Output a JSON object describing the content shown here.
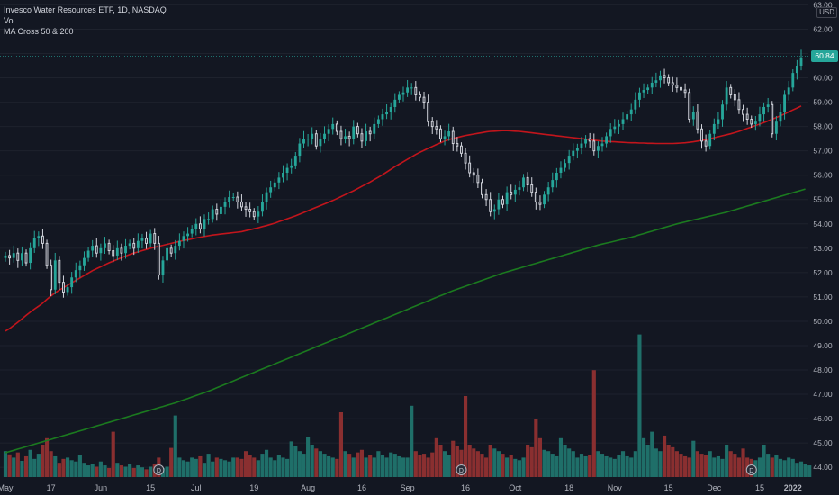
{
  "legend": {
    "title": "Invesco Water Resources ETF, 1D, NASDAQ",
    "vol": "Vol",
    "ma": "MA Cross 50 & 200"
  },
  "currency": "USD",
  "last_price": "60.84",
  "colors": {
    "background": "#131722",
    "up": "#26a69a",
    "down": "#ef5350",
    "vol_up": "#1f6f69",
    "vol_down": "#8a2f30",
    "ma50": "#c2151c",
    "ma200": "#1b7a1f",
    "grid": "#1e222d",
    "axis_text": "#b2b5be"
  },
  "chart_data": {
    "type": "candlestick",
    "y_ticks": [
      "63.00",
      "62.00",
      "61.00",
      "60.00",
      "59.00",
      "58.00",
      "57.00",
      "56.00",
      "55.00",
      "54.00",
      "53.00",
      "52.00",
      "51.00",
      "50.00",
      "49.00",
      "48.00",
      "47.00",
      "46.00",
      "45.00",
      "44.00"
    ],
    "y_range": [
      43.6,
      63.2
    ],
    "x_ticks": [
      "May",
      "17",
      "Jun",
      "15",
      "Jul",
      "19",
      "Aug",
      "16",
      "Sep",
      "16",
      "Oct",
      "18",
      "Nov",
      "15",
      "Dec",
      "15",
      "2022"
    ],
    "x_tick_index": [
      0,
      11,
      23,
      35,
      46,
      60,
      73,
      86,
      97,
      111,
      123,
      136,
      147,
      160,
      171,
      182,
      190
    ],
    "dividend_markers": {
      "label": "D",
      "index": [
        37,
        110,
        180
      ]
    },
    "close": [
      52.7,
      52.6,
      52.8,
      52.5,
      52.8,
      52.4,
      53.0,
      53.4,
      53.5,
      53.2,
      52.3,
      51.3,
      52.5,
      51.6,
      51.2,
      51.4,
      51.8,
      52.1,
      52.3,
      52.6,
      52.9,
      53.1,
      52.8,
      53.0,
      53.2,
      52.9,
      52.7,
      53.0,
      52.8,
      53.1,
      53.2,
      53.0,
      53.3,
      53.4,
      53.2,
      53.6,
      53.2,
      51.9,
      52.5,
      53.0,
      52.8,
      53.1,
      53.3,
      53.5,
      53.6,
      53.8,
      54.0,
      53.8,
      54.2,
      54.2,
      54.6,
      54.4,
      54.7,
      54.9,
      55.1,
      55.1,
      54.9,
      54.7,
      54.6,
      54.5,
      54.3,
      54.5,
      54.9,
      55.3,
      55.5,
      55.7,
      55.9,
      56.1,
      56.3,
      56.4,
      56.8,
      57.3,
      57.5,
      57.5,
      57.7,
      57.2,
      57.5,
      57.7,
      57.9,
      58.1,
      57.8,
      57.5,
      57.6,
      57.5,
      58.0,
      57.7,
      57.4,
      57.8,
      57.7,
      58.1,
      58.3,
      58.5,
      58.6,
      58.8,
      59.1,
      59.3,
      59.4,
      59.6,
      59.6,
      59.3,
      59.2,
      59.0,
      58.2,
      58.0,
      57.9,
      57.5,
      57.6,
      57.8,
      57.3,
      57.2,
      56.9,
      56.5,
      56.1,
      56.0,
      55.7,
      55.2,
      55.0,
      54.5,
      54.6,
      55.0,
      54.8,
      55.3,
      55.2,
      55.4,
      55.5,
      55.9,
      55.6,
      55.3,
      54.9,
      54.8,
      55.2,
      55.5,
      55.8,
      56.1,
      56.3,
      56.5,
      56.8,
      57.0,
      57.1,
      57.3,
      57.5,
      57.4,
      57.0,
      57.2,
      57.3,
      57.6,
      57.9,
      58.0,
      58.1,
      58.3,
      58.5,
      58.7,
      59.1,
      59.4,
      59.5,
      59.6,
      59.8,
      59.9,
      60.1,
      60.0,
      59.8,
      59.7,
      59.6,
      59.5,
      59.4,
      58.3,
      58.6,
      57.9,
      57.4,
      57.2,
      57.7,
      58.1,
      58.3,
      58.9,
      59.6,
      59.3,
      59.1,
      58.7,
      58.5,
      58.3,
      58.1,
      58.2,
      58.5,
      58.8,
      58.9,
      57.7,
      58.2,
      58.6,
      59.3,
      59.6,
      60.2,
      60.5,
      60.84
    ],
    "ma50": [
      49.6,
      49.7,
      49.83,
      49.96,
      50.1,
      50.24,
      50.38,
      50.5,
      50.62,
      50.75,
      50.9,
      51.04,
      51.17,
      51.28,
      51.38,
      51.48,
      51.58,
      51.68,
      51.78,
      51.88,
      51.98,
      52.08,
      52.16,
      52.24,
      52.32,
      52.4,
      52.47,
      52.54,
      52.61,
      52.68,
      52.74,
      52.8,
      52.85,
      52.9,
      52.95,
      53.0,
      53.04,
      53.08,
      53.12,
      53.16,
      53.2,
      53.24,
      53.28,
      53.32,
      53.35,
      53.38,
      53.42,
      53.45,
      53.48,
      53.51,
      53.54,
      53.56,
      53.58,
      53.6,
      53.62,
      53.64,
      53.66,
      53.68,
      53.72,
      53.76,
      53.8,
      53.84,
      53.89,
      53.93,
      53.98,
      54.03,
      54.09,
      54.15,
      54.21,
      54.27,
      54.33,
      54.4,
      54.47,
      54.54,
      54.61,
      54.68,
      54.75,
      54.82,
      54.89,
      54.96,
      55.04,
      55.12,
      55.2,
      55.28,
      55.36,
      55.45,
      55.54,
      55.63,
      55.72,
      55.82,
      55.92,
      56.02,
      56.13,
      56.24,
      56.35,
      56.45,
      56.55,
      56.65,
      56.75,
      56.85,
      56.94,
      57.02,
      57.1,
      57.18,
      57.26,
      57.33,
      57.4,
      57.46,
      57.51,
      57.55,
      57.59,
      57.63,
      57.66,
      57.69,
      57.72,
      57.75,
      57.78,
      57.8,
      57.81,
      57.82,
      57.83,
      57.83,
      57.82,
      57.81,
      57.8,
      57.78,
      57.76,
      57.74,
      57.72,
      57.7,
      57.68,
      57.66,
      57.64,
      57.62,
      57.6,
      57.58,
      57.56,
      57.54,
      57.52,
      57.5,
      57.48,
      57.46,
      57.44,
      57.42,
      57.4,
      57.39,
      57.38,
      57.37,
      57.36,
      57.35,
      57.34,
      57.33,
      57.33,
      57.32,
      57.32,
      57.31,
      57.31,
      57.3,
      57.3,
      57.3,
      57.3,
      57.3,
      57.31,
      57.32,
      57.33,
      57.35,
      57.37,
      57.4,
      57.43,
      57.46,
      57.5,
      57.54,
      57.58,
      57.62,
      57.66,
      57.7,
      57.75,
      57.8,
      57.86,
      57.92,
      57.98,
      58.04,
      58.1,
      58.16,
      58.23,
      58.3,
      58.37,
      58.44,
      58.52,
      58.6,
      58.68,
      58.76,
      58.84
    ],
    "ma200": [
      44.6,
      44.65,
      44.7,
      44.75,
      44.8,
      44.85,
      44.9,
      44.95,
      45.0,
      45.05,
      45.1,
      45.15,
      45.2,
      45.25,
      45.3,
      45.35,
      45.4,
      45.45,
      45.5,
      45.55,
      45.6,
      45.65,
      45.7,
      45.75,
      45.8,
      45.85,
      45.9,
      45.95,
      46.0,
      46.05,
      46.1,
      46.15,
      46.2,
      46.25,
      46.3,
      46.35,
      46.4,
      46.45,
      46.5,
      46.55,
      46.6,
      46.65,
      46.71,
      46.77,
      46.83,
      46.89,
      46.95,
      47.01,
      47.07,
      47.13,
      47.2,
      47.27,
      47.34,
      47.41,
      47.48,
      47.55,
      47.62,
      47.69,
      47.76,
      47.83,
      47.9,
      47.97,
      48.04,
      48.11,
      48.18,
      48.25,
      48.32,
      48.39,
      48.46,
      48.53,
      48.6,
      48.67,
      48.74,
      48.81,
      48.88,
      48.95,
      49.02,
      49.09,
      49.16,
      49.23,
      49.3,
      49.37,
      49.44,
      49.51,
      49.58,
      49.65,
      49.72,
      49.79,
      49.86,
      49.93,
      50.0,
      50.07,
      50.14,
      50.21,
      50.28,
      50.35,
      50.42,
      50.49,
      50.56,
      50.63,
      50.7,
      50.77,
      50.84,
      50.91,
      50.98,
      51.05,
      51.12,
      51.19,
      51.26,
      51.32,
      51.38,
      51.44,
      51.5,
      51.56,
      51.62,
      51.68,
      51.74,
      51.8,
      51.86,
      51.92,
      51.98,
      52.03,
      52.08,
      52.13,
      52.18,
      52.23,
      52.28,
      52.33,
      52.38,
      52.43,
      52.48,
      52.53,
      52.58,
      52.63,
      52.68,
      52.73,
      52.78,
      52.83,
      52.88,
      52.93,
      52.98,
      53.03,
      53.08,
      53.13,
      53.17,
      53.21,
      53.25,
      53.29,
      53.33,
      53.37,
      53.41,
      53.45,
      53.5,
      53.55,
      53.6,
      53.65,
      53.7,
      53.75,
      53.8,
      53.85,
      53.9,
      53.95,
      54.0,
      54.04,
      54.08,
      54.12,
      54.16,
      54.2,
      54.24,
      54.28,
      54.32,
      54.36,
      54.4,
      54.44,
      54.48,
      54.53,
      54.58,
      54.63,
      54.68,
      54.73,
      54.78,
      54.83,
      54.88,
      54.93,
      54.98,
      55.03,
      55.08,
      55.13,
      55.18,
      55.23,
      55.28,
      55.33,
      55.38,
      55.43
    ],
    "volume_relative": [
      0.4,
      0.35,
      0.3,
      0.38,
      0.25,
      0.32,
      0.42,
      0.28,
      0.36,
      0.5,
      0.6,
      0.4,
      0.32,
      0.22,
      0.28,
      0.3,
      0.26,
      0.24,
      0.34,
      0.22,
      0.18,
      0.2,
      0.16,
      0.24,
      0.18,
      0.14,
      0.7,
      0.22,
      0.18,
      0.16,
      0.2,
      0.14,
      0.18,
      0.15,
      0.12,
      0.16,
      0.2,
      0.3,
      0.14,
      0.16,
      0.45,
      0.95,
      0.3,
      0.26,
      0.24,
      0.3,
      0.28,
      0.32,
      0.22,
      0.36,
      0.24,
      0.3,
      0.28,
      0.26,
      0.24,
      0.3,
      0.3,
      0.28,
      0.4,
      0.34,
      0.3,
      0.26,
      0.36,
      0.42,
      0.3,
      0.26,
      0.34,
      0.3,
      0.28,
      0.55,
      0.48,
      0.4,
      0.36,
      0.62,
      0.5,
      0.44,
      0.4,
      0.36,
      0.32,
      0.3,
      0.28,
      1.0,
      0.4,
      0.36,
      0.3,
      0.38,
      0.42,
      0.3,
      0.34,
      0.3,
      0.4,
      0.34,
      0.3,
      0.38,
      0.36,
      0.32,
      0.3,
      0.3,
      1.1,
      0.4,
      0.34,
      0.36,
      0.3,
      0.38,
      0.6,
      0.5,
      0.4,
      0.34,
      0.56,
      0.48,
      0.42,
      1.25,
      0.5,
      0.44,
      0.4,
      0.36,
      0.3,
      0.5,
      0.44,
      0.4,
      0.36,
      0.3,
      0.34,
      0.28,
      0.26,
      0.3,
      0.5,
      0.46,
      0.9,
      0.6,
      0.42,
      0.4,
      0.36,
      0.32,
      0.6,
      0.5,
      0.44,
      0.4,
      0.3,
      0.36,
      0.32,
      0.34,
      1.65,
      0.4,
      0.36,
      0.32,
      0.3,
      0.28,
      0.34,
      0.4,
      0.32,
      0.3,
      0.4,
      2.2,
      0.6,
      0.5,
      0.7,
      0.44,
      0.4,
      0.64,
      0.5,
      0.46,
      0.4,
      0.36,
      0.32,
      0.3,
      0.56,
      0.4,
      0.36,
      0.34,
      0.4,
      0.3,
      0.32,
      0.28,
      0.5,
      0.4,
      0.36,
      0.3,
      0.44,
      0.3,
      0.28,
      0.26,
      0.3,
      0.5,
      0.36,
      0.3,
      0.34,
      0.28,
      0.26,
      0.3,
      0.28,
      0.22,
      0.24,
      0.2,
      0.18
    ]
  }
}
